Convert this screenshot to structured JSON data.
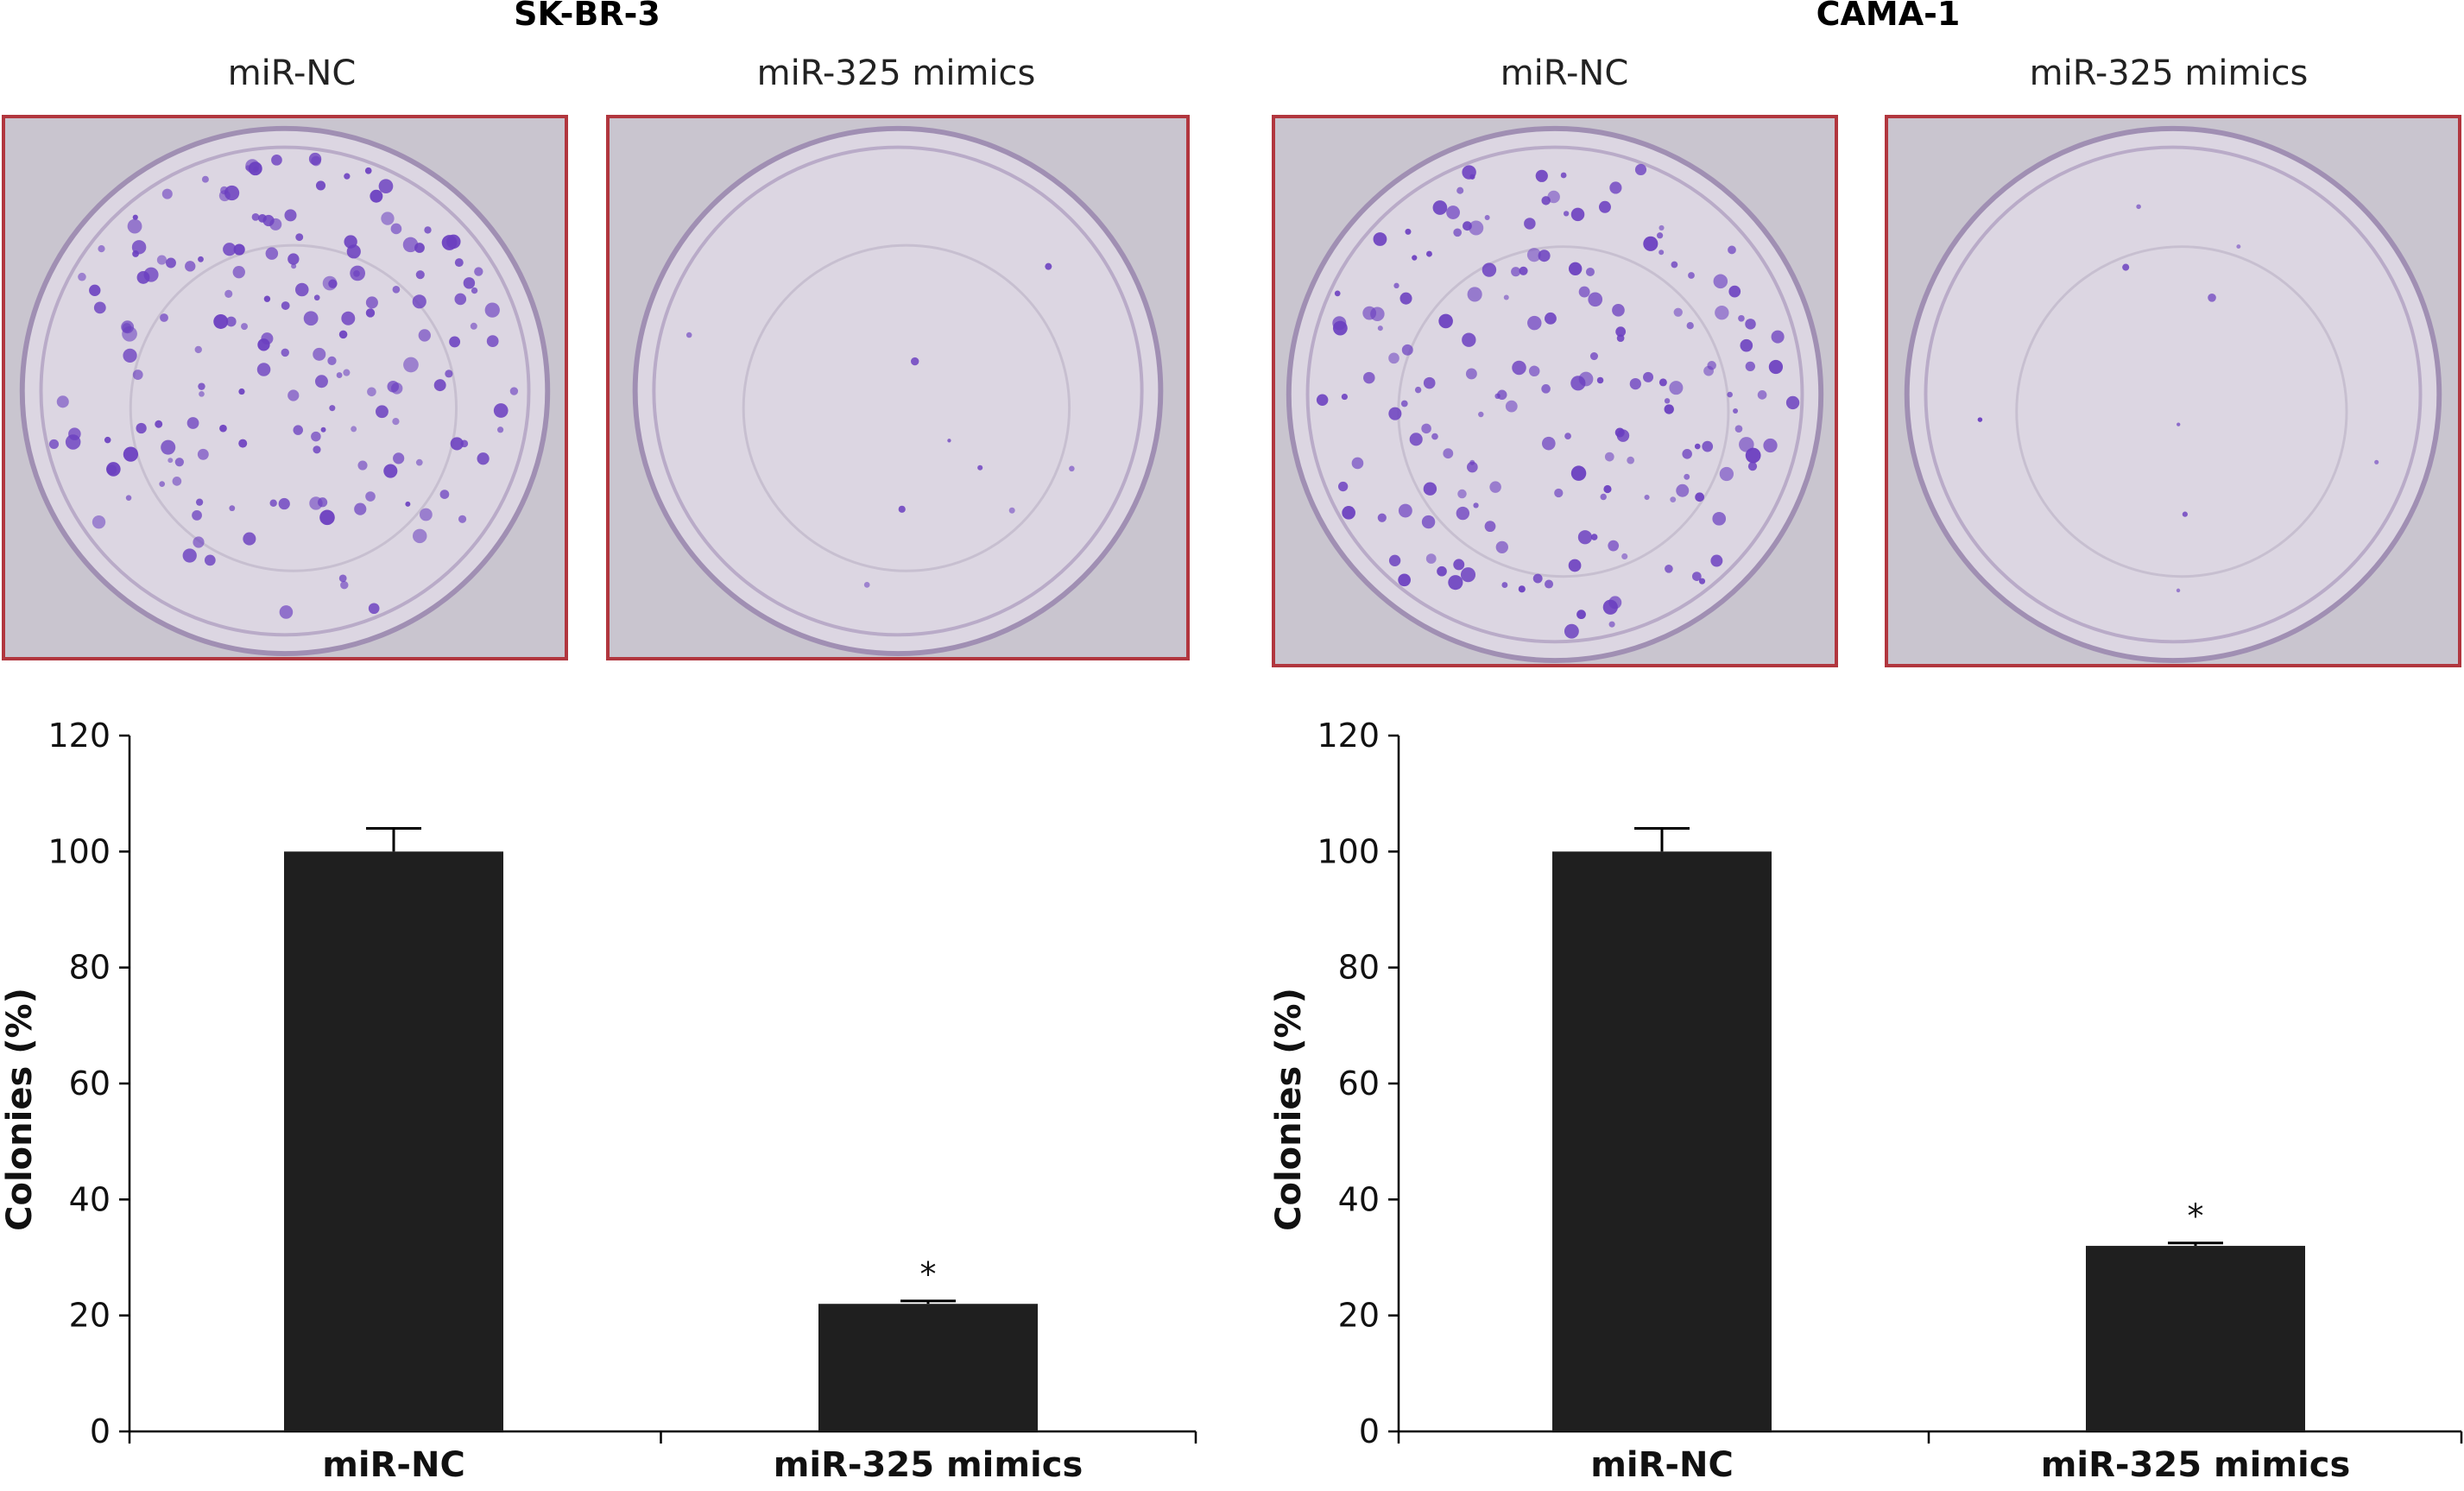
{
  "panels": [
    {
      "title": "SK-BR-3",
      "dishes": [
        {
          "label": "miR-NC",
          "colony_density": "high"
        },
        {
          "label": "miR-325 mimics",
          "colony_density": "very low"
        }
      ]
    },
    {
      "title": "CAMA-1",
      "dishes": [
        {
          "label": "miR-NC",
          "colony_density": "high"
        },
        {
          "label": "miR-325 mimics",
          "colony_density": "very low"
        }
      ]
    }
  ],
  "colors": {
    "bar": "#1f1f1f",
    "photo_border": "#b1363e",
    "colony": "#6b3fc0"
  },
  "chart_data": [
    {
      "type": "bar",
      "categories": [
        "miR-NC",
        "miR-325 mimics"
      ],
      "values": [
        100,
        22
      ],
      "error": [
        4,
        0.5
      ],
      "significance": [
        "",
        "*"
      ],
      "title": "",
      "xlabel": "",
      "ylabel": "Colonies (%)",
      "ylim": [
        0,
        120
      ],
      "yticks": [
        0,
        20,
        40,
        60,
        80,
        100,
        120
      ],
      "grid": false
    },
    {
      "type": "bar",
      "categories": [
        "miR-NC",
        "miR-325 mimics"
      ],
      "values": [
        100,
        32
      ],
      "error": [
        4,
        0.5
      ],
      "significance": [
        "",
        "*"
      ],
      "title": "",
      "xlabel": "",
      "ylabel": "Colonies (%)",
      "ylim": [
        0,
        120
      ],
      "yticks": [
        0,
        20,
        40,
        60,
        80,
        100,
        120
      ],
      "grid": false
    }
  ]
}
